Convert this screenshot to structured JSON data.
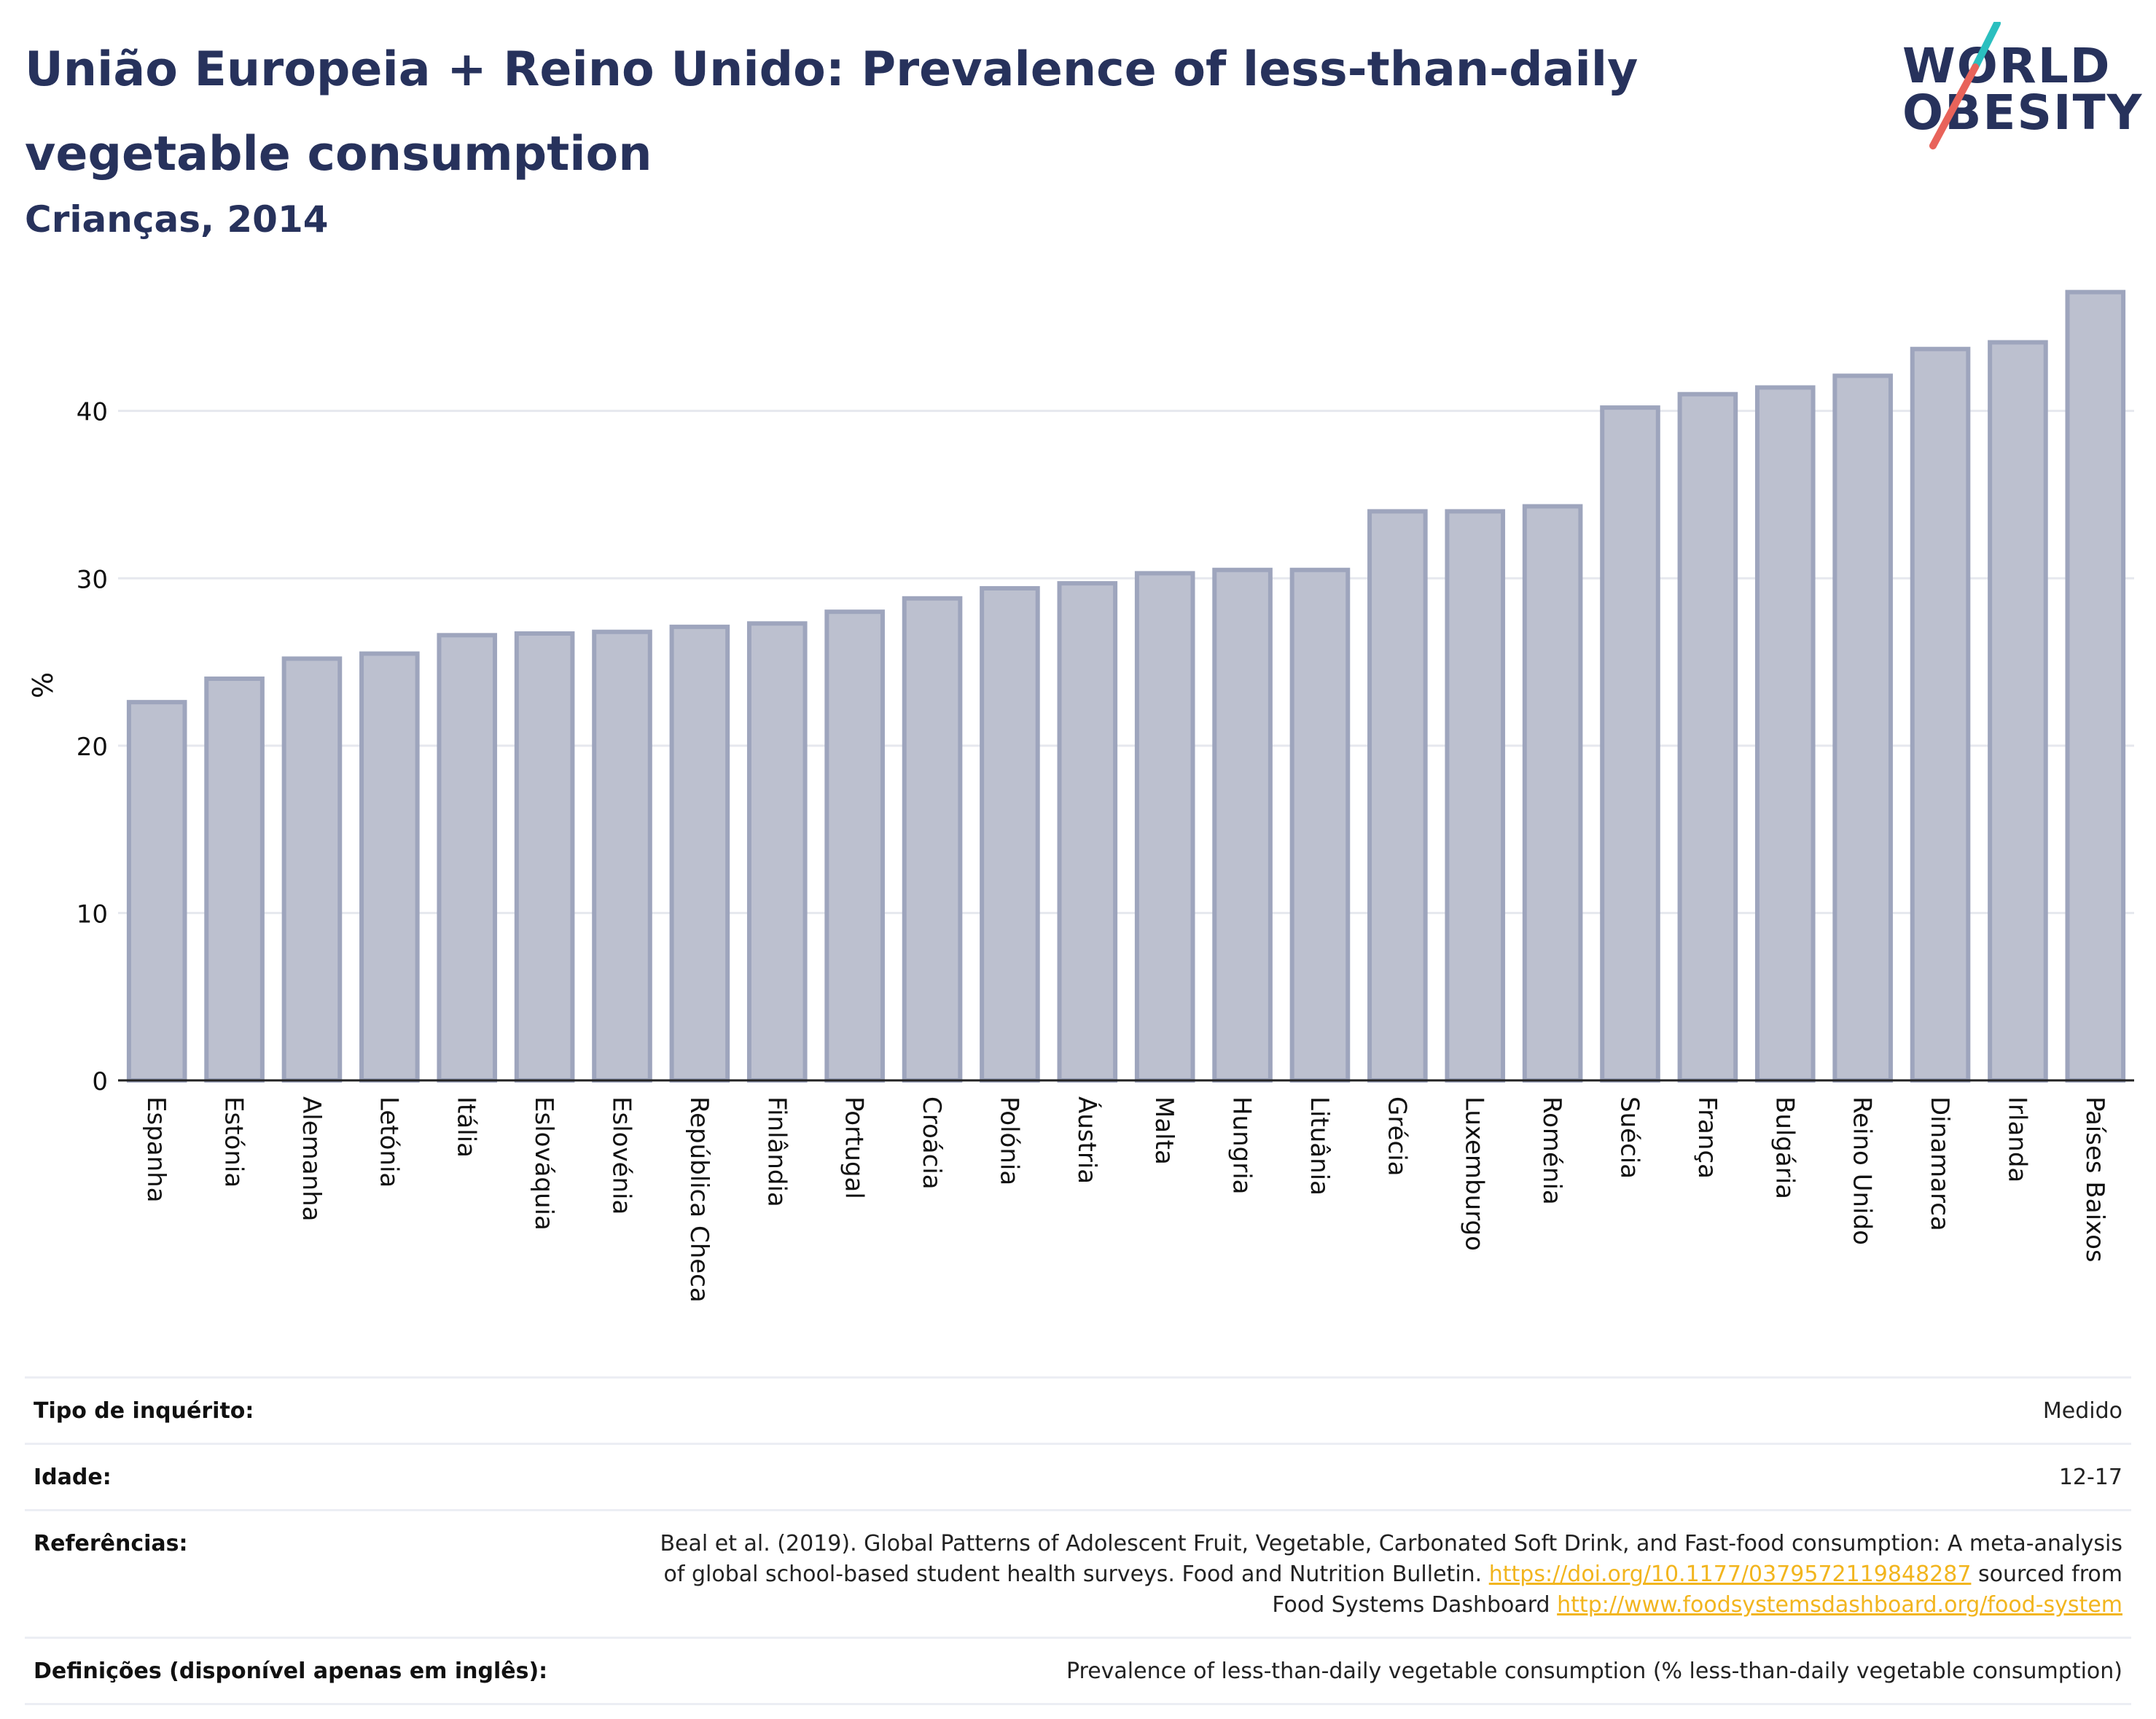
{
  "header": {
    "title": "União Europeia + Reino Unido: Prevalence of less-than-daily vegetable consumption",
    "subtitle": "Crianças, 2014"
  },
  "logo": {
    "line1": "WORLD",
    "line2": "OBESITY",
    "accent_colors": [
      "#2bbfbf",
      "#e8635a"
    ]
  },
  "colors": {
    "title": "#27325c",
    "bar_fill": "#bcc0cf",
    "bar_stroke": "#9ea5bd",
    "link": "#f2b51e"
  },
  "chart_data": {
    "type": "bar",
    "ylabel": "%",
    "xlabel": "",
    "ylim": [
      0,
      48
    ],
    "yticks": [
      0,
      10,
      20,
      30,
      40
    ],
    "grid": true,
    "categories": [
      "Espanha",
      "Estónia",
      "Alemanha",
      "Letónia",
      "Itália",
      "Eslováquia",
      "Eslovénia",
      "República Checa",
      "Finlândia",
      "Portugal",
      "Croácia",
      "Polónia",
      "Áustria",
      "Malta",
      "Hungria",
      "Lituânia",
      "Grécia",
      "Luxemburgo",
      "Roménia",
      "Suécia",
      "França",
      "Bulgária",
      "Reino Unido",
      "Dinamarca",
      "Irlanda",
      "Países Baixos"
    ],
    "values": [
      22.6,
      24.0,
      25.2,
      25.5,
      26.6,
      26.7,
      26.8,
      27.1,
      27.3,
      28.0,
      28.8,
      29.4,
      29.7,
      30.3,
      30.5,
      30.5,
      34.0,
      34.0,
      34.3,
      40.2,
      41.0,
      41.4,
      42.1,
      43.7,
      44.1,
      47.1
    ]
  },
  "meta": [
    {
      "label": "Tipo de inquérito:",
      "value": "Medido"
    },
    {
      "label": "Idade:",
      "value": "12-17"
    },
    {
      "label": "Referências:",
      "value": "Beal et al. (2019). Global Patterns of Adolescent Fruit, Vegetable, Carbonated Soft Drink, and Fast-food consumption: A meta-analysis of global school-based student health surveys. Food and Nutrition Bulletin.",
      "link1": "https://doi.org/10.1177/0379572119848287",
      "mid_text": "sourced from Food Systems Dashboard",
      "link2": "http://www.foodsystemsdashboard.org/food-system"
    },
    {
      "label": "Definições (disponível apenas em inglês):",
      "value": "Prevalence of less-than-daily vegetable consumption (% less-than-daily vegetable consumption)"
    }
  ]
}
